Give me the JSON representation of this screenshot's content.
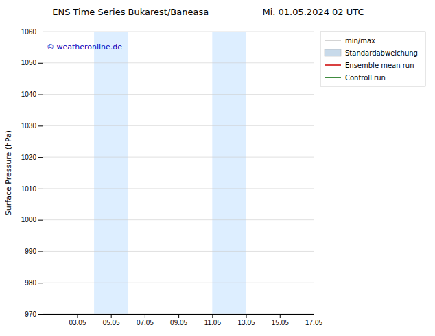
{
  "chart_data": {
    "type": "line",
    "title": "ENS Time Series Bukarest/Baneasa",
    "subtitle": "Mi. 01.05.2024 02 UTC",
    "y_label": "Surface Pressure (hPa)",
    "xlim": [
      1.0,
      17.05
    ],
    "xticks": [
      {
        "value": 3.05,
        "label": "03.05"
      },
      {
        "value": 5.05,
        "label": "05.05"
      },
      {
        "value": 7.05,
        "label": "07.05"
      },
      {
        "value": 9.05,
        "label": "09.05"
      },
      {
        "value": 11.05,
        "label": "11.05"
      },
      {
        "value": 13.05,
        "label": "13.05"
      },
      {
        "value": 15.05,
        "label": "15.05"
      },
      {
        "value": 17.05,
        "label": "17.05"
      }
    ],
    "ylim": [
      970,
      1060
    ],
    "yticks": [
      970,
      980,
      990,
      1000,
      1010,
      1020,
      1030,
      1040,
      1050,
      1060
    ],
    "grid": true,
    "legend": "upper right",
    "shaded_regions": [
      {
        "xmin": 4.05,
        "xmax": 6.05
      },
      {
        "xmin": 11.05,
        "xmax": 13.05
      }
    ],
    "shaded_color": "#ddeeff",
    "annotations": [
      {
        "text": "© weatheronline.de",
        "color": "#0000bb"
      }
    ],
    "series": [
      {
        "name": "min/max",
        "color": "#aaaaaa",
        "type": "line",
        "values": []
      },
      {
        "name": "Standardabweichung",
        "color": "#c8daea",
        "type": "area",
        "values": []
      },
      {
        "name": "Ensemble mean run",
        "color": "#cc0000",
        "type": "line",
        "values": []
      },
      {
        "name": "Controll run",
        "color": "#006600",
        "type": "line",
        "values": []
      }
    ]
  }
}
